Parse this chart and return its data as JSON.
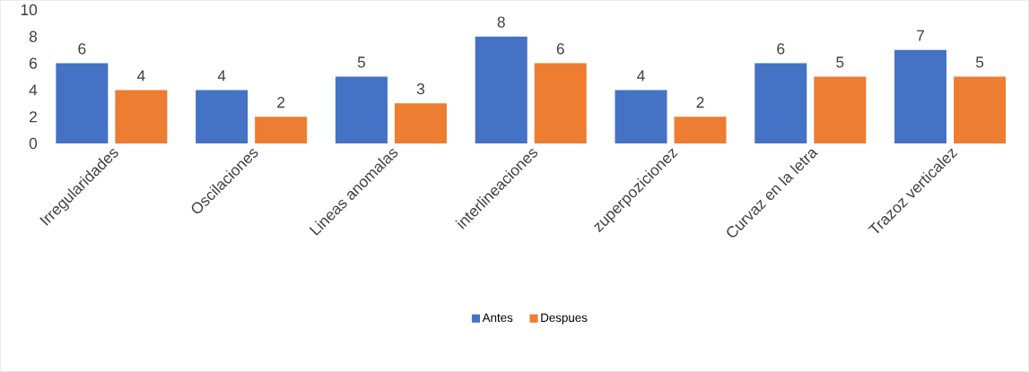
{
  "chart_data": {
    "type": "bar",
    "categories": [
      "Irregularidades",
      "Oscilaciones",
      "Lineas anomalas",
      "interlineaciones",
      "zuperpozicionez",
      "Curvaz en la letra",
      "Trazoz verticalez"
    ],
    "series": [
      {
        "name": "Antes",
        "color": "#4472c4",
        "values": [
          6,
          4,
          5,
          8,
          4,
          6,
          7
        ]
      },
      {
        "name": "Despues",
        "color": "#ed7d31",
        "values": [
          4,
          2,
          3,
          6,
          2,
          5,
          5
        ]
      }
    ],
    "ylim": [
      0,
      10
    ],
    "yticks": [
      0,
      2,
      4,
      6,
      8,
      10
    ],
    "data_labels": true,
    "legend": "bottom"
  }
}
